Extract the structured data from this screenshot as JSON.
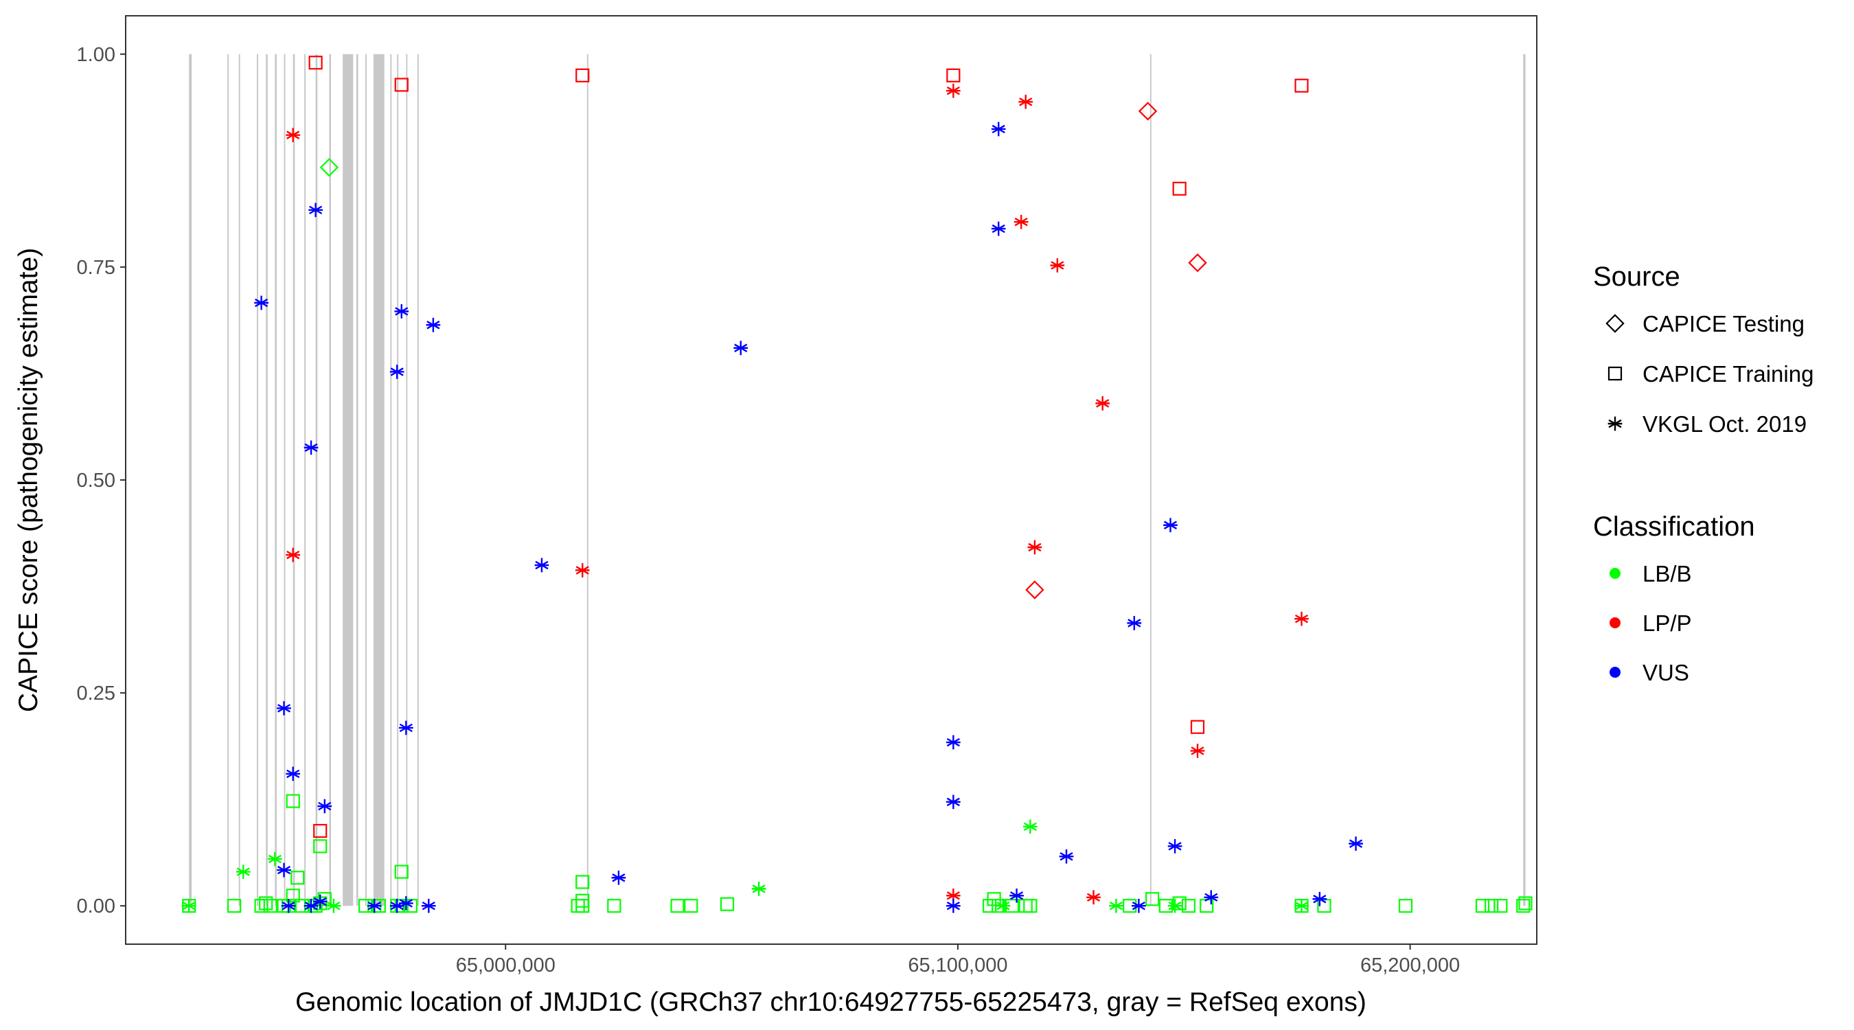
{
  "chart_data": {
    "type": "scatter",
    "xlabel": "Genomic location of JMJD1C (GRCh37 chr10:64927755-65225473, gray = RefSeq exons)",
    "ylabel": "CAPICE score (pathogenicity estimate)",
    "xlim": [
      64916000,
      65228000
    ],
    "ylim": [
      -0.045,
      1.045
    ],
    "x_ticks": [
      65000000,
      65100000,
      65200000
    ],
    "x_tick_labels": [
      "65,000,000",
      "65,100,000",
      "65,200,000"
    ],
    "y_ticks": [
      0,
      0.25,
      0.5,
      0.75,
      1.0
    ],
    "y_tick_labels": [
      "0.00",
      "0.25",
      "0.50",
      "0.75",
      "1.00"
    ],
    "grid": false,
    "legend_position": "right",
    "exons": [
      [
        64930000,
        64930600
      ],
      [
        64938500,
        64938800
      ],
      [
        64941000,
        64941300
      ],
      [
        64945000,
        64945300
      ],
      [
        64947000,
        64947400
      ],
      [
        64949000,
        64949400
      ],
      [
        64951000,
        64951300
      ],
      [
        64953000,
        64953400
      ],
      [
        64955500,
        64955800
      ],
      [
        64958000,
        64958400
      ],
      [
        64961000,
        64961400
      ],
      [
        64964000,
        64966300
      ],
      [
        64967000,
        64967400
      ],
      [
        64969000,
        64969300
      ],
      [
        64970800,
        64973200
      ],
      [
        64974500,
        64974800
      ],
      [
        64976000,
        64976300
      ],
      [
        64978000,
        64978300
      ],
      [
        64980500,
        64980800
      ],
      [
        65018000,
        65018300
      ],
      [
        65142500,
        65142800
      ],
      [
        65225000,
        65225500
      ]
    ],
    "legend": {
      "source": {
        "title": "Source",
        "items": [
          {
            "label": "CAPICE Testing",
            "shape": "diamond"
          },
          {
            "label": "CAPICE Training",
            "shape": "square"
          },
          {
            "label": "VKGL Oct. 2019",
            "shape": "asterisk"
          }
        ]
      },
      "classification": {
        "title": "Classification",
        "items": [
          {
            "label": "LB/B",
            "color": "#00ff00"
          },
          {
            "label": "LP/P",
            "color": "#ff0000"
          },
          {
            "label": "VUS",
            "color": "#0000ff"
          }
        ]
      }
    },
    "series": [
      {
        "name": "LB/B",
        "color": "#00ff00",
        "points": [
          {
            "x": 64930000,
            "y": 0.0,
            "s": "square"
          },
          {
            "x": 64930000,
            "y": 0.0,
            "s": "asterisk"
          },
          {
            "x": 64940000,
            "y": 0.0,
            "s": "square"
          },
          {
            "x": 64942000,
            "y": 0.04,
            "s": "asterisk"
          },
          {
            "x": 64946000,
            "y": 0.0,
            "s": "square"
          },
          {
            "x": 64947000,
            "y": 0.003,
            "s": "square"
          },
          {
            "x": 64948000,
            "y": 0.0,
            "s": "square"
          },
          {
            "x": 64949000,
            "y": 0.055,
            "s": "asterisk"
          },
          {
            "x": 64951000,
            "y": 0.0,
            "s": "square"
          },
          {
            "x": 64952000,
            "y": 0.0,
            "s": "square"
          },
          {
            "x": 64953000,
            "y": 0.123,
            "s": "square"
          },
          {
            "x": 64953000,
            "y": 0.012,
            "s": "square"
          },
          {
            "x": 64954000,
            "y": 0.033,
            "s": "square"
          },
          {
            "x": 64955000,
            "y": 0.0,
            "s": "square"
          },
          {
            "x": 64957000,
            "y": 0.0,
            "s": "square"
          },
          {
            "x": 64958000,
            "y": 0.0,
            "s": "square"
          },
          {
            "x": 64959000,
            "y": 0.07,
            "s": "square"
          },
          {
            "x": 64959000,
            "y": 0.003,
            "s": "square"
          },
          {
            "x": 64960000,
            "y": 0.008,
            "s": "square"
          },
          {
            "x": 64961000,
            "y": 0.867,
            "s": "diamond"
          },
          {
            "x": 64962000,
            "y": 0.0,
            "s": "asterisk"
          },
          {
            "x": 64969000,
            "y": 0.0,
            "s": "square"
          },
          {
            "x": 64971000,
            "y": 0.0,
            "s": "square"
          },
          {
            "x": 64972000,
            "y": 0.0,
            "s": "square"
          },
          {
            "x": 64976000,
            "y": 0.0,
            "s": "square"
          },
          {
            "x": 64977000,
            "y": 0.04,
            "s": "square"
          },
          {
            "x": 64977000,
            "y": 0.0,
            "s": "square"
          },
          {
            "x": 64979000,
            "y": 0.0,
            "s": "square"
          },
          {
            "x": 65016000,
            "y": 0.0,
            "s": "square"
          },
          {
            "x": 65017000,
            "y": 0.028,
            "s": "square"
          },
          {
            "x": 65017000,
            "y": 0.006,
            "s": "square"
          },
          {
            "x": 65017000,
            "y": 0.0,
            "s": "square"
          },
          {
            "x": 65024000,
            "y": 0.0,
            "s": "square"
          },
          {
            "x": 65038000,
            "y": 0.0,
            "s": "square"
          },
          {
            "x": 65041000,
            "y": 0.0,
            "s": "square"
          },
          {
            "x": 65049000,
            "y": 0.002,
            "s": "square"
          },
          {
            "x": 65056000,
            "y": 0.02,
            "s": "asterisk"
          },
          {
            "x": 65107000,
            "y": 0.0,
            "s": "square"
          },
          {
            "x": 65108000,
            "y": 0.008,
            "s": "square"
          },
          {
            "x": 65109000,
            "y": 0.0,
            "s": "square"
          },
          {
            "x": 65110000,
            "y": 0.0,
            "s": "asterisk"
          },
          {
            "x": 65112000,
            "y": 0.0,
            "s": "square"
          },
          {
            "x": 65115000,
            "y": 0.0,
            "s": "square"
          },
          {
            "x": 65116000,
            "y": 0.0,
            "s": "square"
          },
          {
            "x": 65116000,
            "y": 0.093,
            "s": "asterisk"
          },
          {
            "x": 65135000,
            "y": 0.0,
            "s": "asterisk"
          },
          {
            "x": 65138000,
            "y": 0.0,
            "s": "square"
          },
          {
            "x": 65143000,
            "y": 0.008,
            "s": "square"
          },
          {
            "x": 65146000,
            "y": 0.0,
            "s": "square"
          },
          {
            "x": 65148000,
            "y": 0.0,
            "s": "asterisk"
          },
          {
            "x": 65149000,
            "y": 0.003,
            "s": "square"
          },
          {
            "x": 65151000,
            "y": 0.0,
            "s": "square"
          },
          {
            "x": 65155000,
            "y": 0.0,
            "s": "square"
          },
          {
            "x": 65176000,
            "y": 0.0,
            "s": "square"
          },
          {
            "x": 65176000,
            "y": 0.0,
            "s": "asterisk"
          },
          {
            "x": 65181000,
            "y": 0.0,
            "s": "square"
          },
          {
            "x": 65199000,
            "y": 0.0,
            "s": "square"
          },
          {
            "x": 65216000,
            "y": 0.0,
            "s": "square"
          },
          {
            "x": 65218000,
            "y": 0.0,
            "s": "square"
          },
          {
            "x": 65220000,
            "y": 0.0,
            "s": "square"
          },
          {
            "x": 65225000,
            "y": 0.0,
            "s": "square"
          },
          {
            "x": 65225500,
            "y": 0.003,
            "s": "square"
          }
        ]
      },
      {
        "name": "LP/P",
        "color": "#ff0000",
        "points": [
          {
            "x": 64958000,
            "y": 0.99,
            "s": "square"
          },
          {
            "x": 64953000,
            "y": 0.905,
            "s": "asterisk"
          },
          {
            "x": 64953000,
            "y": 0.412,
            "s": "asterisk"
          },
          {
            "x": 64959000,
            "y": 0.088,
            "s": "square"
          },
          {
            "x": 64977000,
            "y": 0.964,
            "s": "square"
          },
          {
            "x": 65017000,
            "y": 0.975,
            "s": "square"
          },
          {
            "x": 65017000,
            "y": 0.394,
            "s": "asterisk"
          },
          {
            "x": 65099000,
            "y": 0.975,
            "s": "square"
          },
          {
            "x": 65099000,
            "y": 0.957,
            "s": "asterisk"
          },
          {
            "x": 65099000,
            "y": 0.012,
            "s": "asterisk"
          },
          {
            "x": 65115000,
            "y": 0.944,
            "s": "asterisk"
          },
          {
            "x": 65114000,
            "y": 0.803,
            "s": "asterisk"
          },
          {
            "x": 65122000,
            "y": 0.752,
            "s": "asterisk"
          },
          {
            "x": 65117000,
            "y": 0.421,
            "s": "asterisk"
          },
          {
            "x": 65117000,
            "y": 0.371,
            "s": "diamond"
          },
          {
            "x": 65132000,
            "y": 0.59,
            "s": "asterisk"
          },
          {
            "x": 65130000,
            "y": 0.01,
            "s": "asterisk"
          },
          {
            "x": 65142000,
            "y": 0.933,
            "s": "diamond"
          },
          {
            "x": 65149000,
            "y": 0.842,
            "s": "square"
          },
          {
            "x": 65153000,
            "y": 0.755,
            "s": "diamond"
          },
          {
            "x": 65153000,
            "y": 0.21,
            "s": "square"
          },
          {
            "x": 65153000,
            "y": 0.182,
            "s": "asterisk"
          },
          {
            "x": 65176000,
            "y": 0.963,
            "s": "square"
          },
          {
            "x": 65176000,
            "y": 0.337,
            "s": "asterisk"
          }
        ]
      },
      {
        "name": "VUS",
        "color": "#0000ff",
        "points": [
          {
            "x": 64946000,
            "y": 0.708,
            "s": "asterisk"
          },
          {
            "x": 64958000,
            "y": 0.817,
            "s": "asterisk"
          },
          {
            "x": 64957000,
            "y": 0.538,
            "s": "asterisk"
          },
          {
            "x": 64951000,
            "y": 0.232,
            "s": "asterisk"
          },
          {
            "x": 64953000,
            "y": 0.155,
            "s": "asterisk"
          },
          {
            "x": 64960000,
            "y": 0.117,
            "s": "asterisk"
          },
          {
            "x": 64951000,
            "y": 0.042,
            "s": "asterisk"
          },
          {
            "x": 64952000,
            "y": 0.0,
            "s": "asterisk"
          },
          {
            "x": 64957000,
            "y": 0.0,
            "s": "asterisk"
          },
          {
            "x": 64959000,
            "y": 0.005,
            "s": "asterisk"
          },
          {
            "x": 64971000,
            "y": 0.0,
            "s": "asterisk"
          },
          {
            "x": 64977000,
            "y": 0.698,
            "s": "asterisk"
          },
          {
            "x": 64976000,
            "y": 0.627,
            "s": "asterisk"
          },
          {
            "x": 64984000,
            "y": 0.682,
            "s": "asterisk"
          },
          {
            "x": 64978000,
            "y": 0.209,
            "s": "asterisk"
          },
          {
            "x": 64976000,
            "y": 0.0,
            "s": "asterisk"
          },
          {
            "x": 64978000,
            "y": 0.003,
            "s": "asterisk"
          },
          {
            "x": 64983000,
            "y": 0.0,
            "s": "asterisk"
          },
          {
            "x": 65008000,
            "y": 0.4,
            "s": "asterisk"
          },
          {
            "x": 65025000,
            "y": 0.033,
            "s": "asterisk"
          },
          {
            "x": 65052000,
            "y": 0.655,
            "s": "asterisk"
          },
          {
            "x": 65109000,
            "y": 0.912,
            "s": "asterisk"
          },
          {
            "x": 65109000,
            "y": 0.795,
            "s": "asterisk"
          },
          {
            "x": 65099000,
            "y": 0.192,
            "s": "asterisk"
          },
          {
            "x": 65099000,
            "y": 0.122,
            "s": "asterisk"
          },
          {
            "x": 65099000,
            "y": 0.0,
            "s": "asterisk"
          },
          {
            "x": 65113000,
            "y": 0.012,
            "s": "asterisk"
          },
          {
            "x": 65124000,
            "y": 0.058,
            "s": "asterisk"
          },
          {
            "x": 65147000,
            "y": 0.447,
            "s": "asterisk"
          },
          {
            "x": 65139000,
            "y": 0.332,
            "s": "asterisk"
          },
          {
            "x": 65148000,
            "y": 0.07,
            "s": "asterisk"
          },
          {
            "x": 65156000,
            "y": 0.01,
            "s": "asterisk"
          },
          {
            "x": 65140000,
            "y": 0.0,
            "s": "asterisk"
          },
          {
            "x": 65180000,
            "y": 0.008,
            "s": "asterisk"
          },
          {
            "x": 65188000,
            "y": 0.073,
            "s": "asterisk"
          }
        ]
      }
    ]
  }
}
